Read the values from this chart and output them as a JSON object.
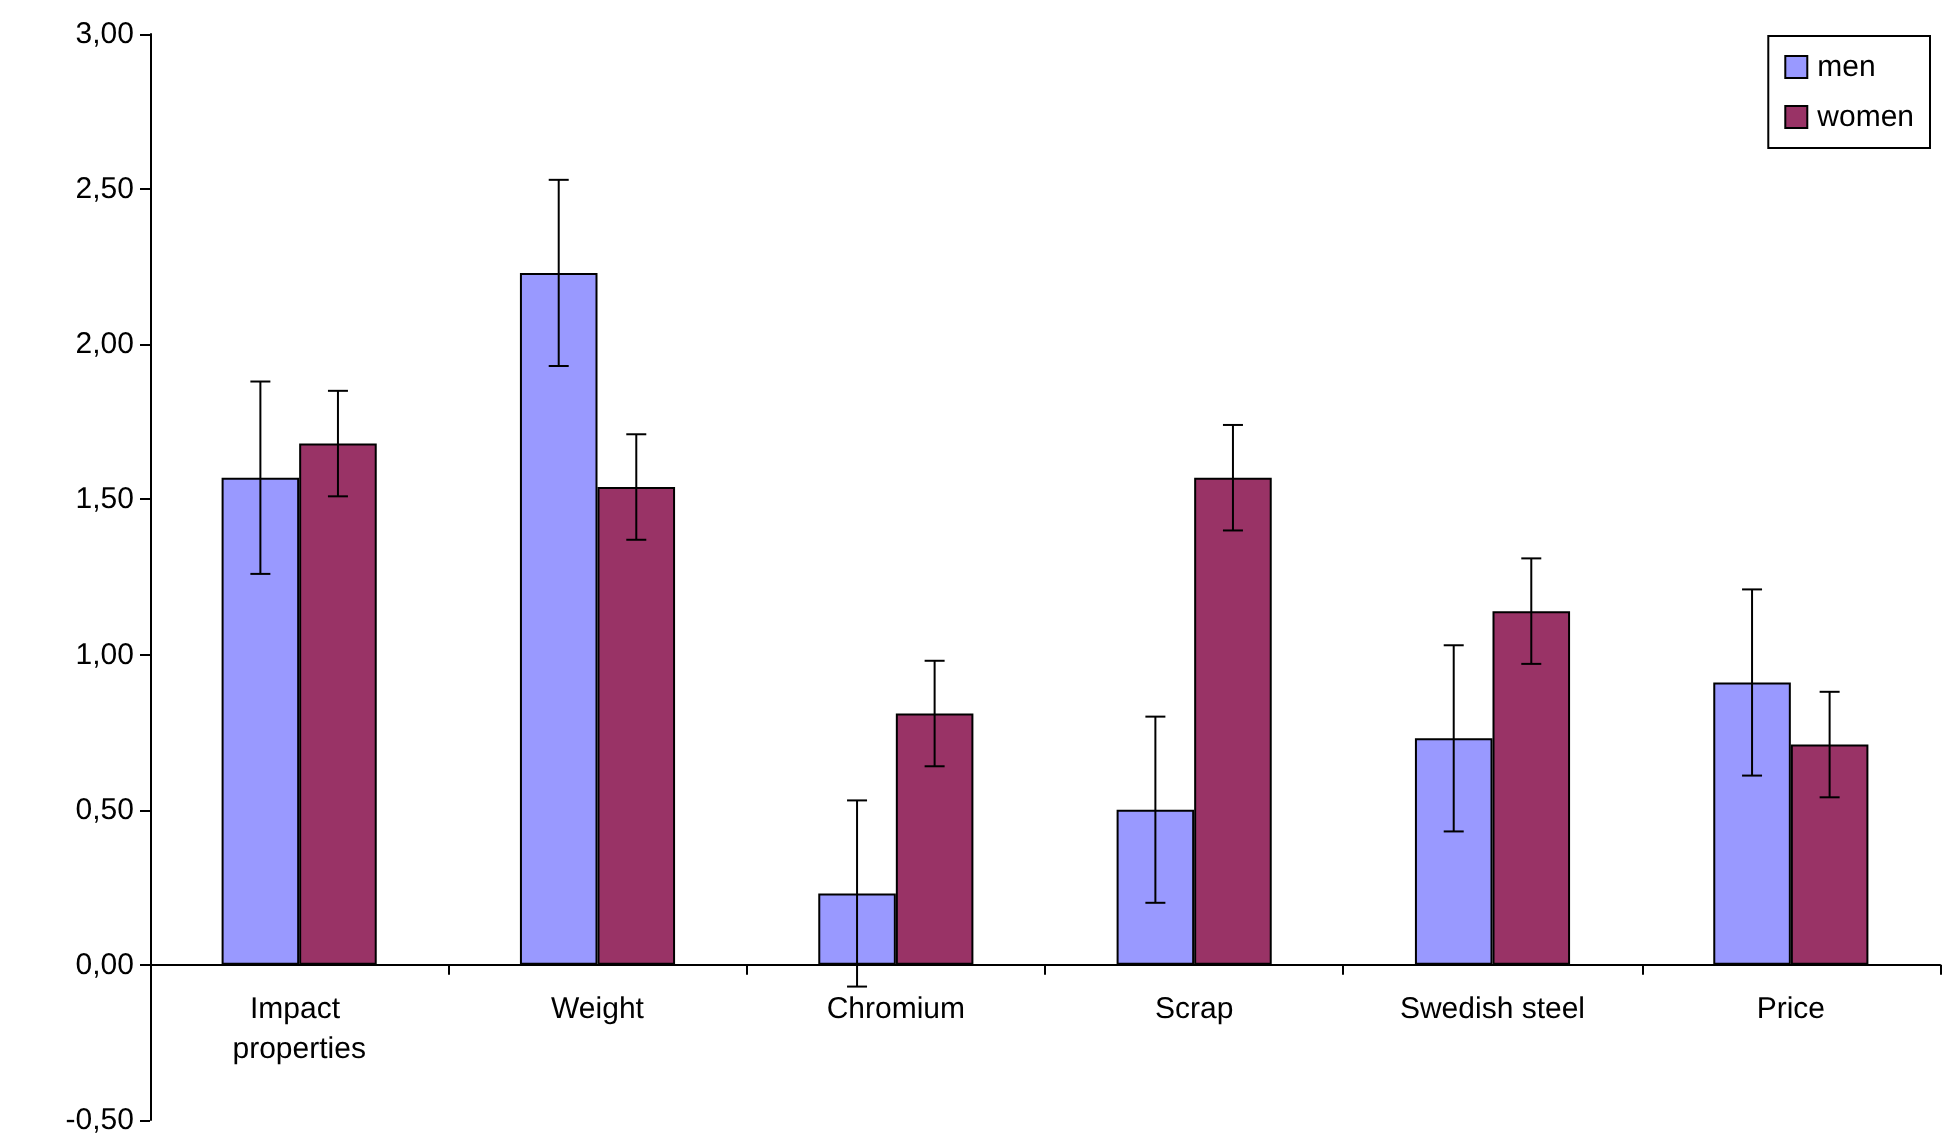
{
  "chart_data": {
    "type": "bar",
    "categories": [
      "Impact properties",
      "Weight",
      "Chromium",
      "Scrap",
      "Swedish steel",
      "Price"
    ],
    "series": [
      {
        "name": "men",
        "color": "#9999ff",
        "values": [
          1.57,
          2.23,
          0.23,
          0.5,
          0.73,
          0.91
        ],
        "errors": [
          0.31,
          0.3,
          0.3,
          0.3,
          0.3,
          0.3
        ]
      },
      {
        "name": "women",
        "color": "#993366",
        "values": [
          1.68,
          1.54,
          0.81,
          1.57,
          1.14,
          0.71
        ],
        "errors": [
          0.17,
          0.17,
          0.17,
          0.17,
          0.17,
          0.17
        ]
      }
    ],
    "ylim": [
      -0.5,
      3
    ],
    "yticks": [
      {
        "value": -0.5,
        "label": "-0,50"
      },
      {
        "value": 0,
        "label": "0,00"
      },
      {
        "value": 0.5,
        "label": "0,50"
      },
      {
        "value": 1,
        "label": "1,00"
      },
      {
        "value": 1.5,
        "label": "1,50"
      },
      {
        "value": 2,
        "label": "2,00"
      },
      {
        "value": 2.5,
        "label": "2,50"
      },
      {
        "value": 3,
        "label": "3,00"
      }
    ],
    "grid": false,
    "legend": "top right"
  }
}
